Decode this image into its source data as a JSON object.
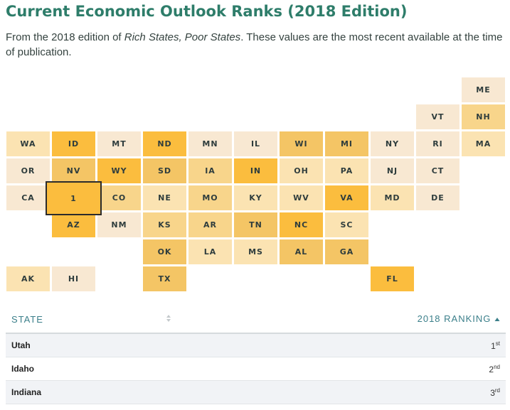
{
  "header": {
    "title": "Current Economic Outlook Ranks (2018 Edition)",
    "subtitle_pre": "From the 2018 edition of ",
    "subtitle_em": "Rich States, Poor States",
    "subtitle_post": ". These values are the most recent available at the time of publication."
  },
  "colors": {
    "title": "#2e7d6a",
    "rank_top": "#fbbd3e",
    "rank_high": "#f4c565",
    "rank_mid": "#f8d58b",
    "rank_midlow": "#fbe3b2",
    "rank_low": "#f8e8d2",
    "header_text": "#3b7f8a"
  },
  "chart_data": {
    "type": "tile-map",
    "selected": {
      "state": "UT",
      "label": "1"
    },
    "tiles": [
      {
        "state": "ME",
        "row": 0,
        "col": 10,
        "label": "ME",
        "shade": "low"
      },
      {
        "state": "VT",
        "row": 1,
        "col": 9,
        "label": "VT",
        "shade": "low"
      },
      {
        "state": "NH",
        "row": 1,
        "col": 10,
        "label": "NH",
        "shade": "mid"
      },
      {
        "state": "WA",
        "row": 2,
        "col": 0,
        "label": "WA",
        "shade": "midlow"
      },
      {
        "state": "ID",
        "row": 2,
        "col": 1,
        "label": "ID",
        "shade": "top"
      },
      {
        "state": "MT",
        "row": 2,
        "col": 2,
        "label": "MT",
        "shade": "low"
      },
      {
        "state": "ND",
        "row": 2,
        "col": 3,
        "label": "ND",
        "shade": "top"
      },
      {
        "state": "MN",
        "row": 2,
        "col": 4,
        "label": "MN",
        "shade": "low"
      },
      {
        "state": "IL",
        "row": 2,
        "col": 5,
        "label": "IL",
        "shade": "low"
      },
      {
        "state": "WI",
        "row": 2,
        "col": 6,
        "label": "WI",
        "shade": "high"
      },
      {
        "state": "MI",
        "row": 2,
        "col": 7,
        "label": "MI",
        "shade": "high"
      },
      {
        "state": "NY",
        "row": 2,
        "col": 8,
        "label": "NY",
        "shade": "low"
      },
      {
        "state": "RI",
        "row": 2,
        "col": 9,
        "label": "RI",
        "shade": "low"
      },
      {
        "state": "MA",
        "row": 2,
        "col": 10,
        "label": "MA",
        "shade": "midlow"
      },
      {
        "state": "OR",
        "row": 3,
        "col": 0,
        "label": "OR",
        "shade": "low"
      },
      {
        "state": "NV",
        "row": 3,
        "col": 1,
        "label": "NV",
        "shade": "high"
      },
      {
        "state": "WY",
        "row": 3,
        "col": 2,
        "label": "WY",
        "shade": "top"
      },
      {
        "state": "SD",
        "row": 3,
        "col": 3,
        "label": "SD",
        "shade": "high"
      },
      {
        "state": "IA",
        "row": 3,
        "col": 4,
        "label": "IA",
        "shade": "mid"
      },
      {
        "state": "IN",
        "row": 3,
        "col": 5,
        "label": "IN",
        "shade": "top"
      },
      {
        "state": "OH",
        "row": 3,
        "col": 6,
        "label": "OH",
        "shade": "midlow"
      },
      {
        "state": "PA",
        "row": 3,
        "col": 7,
        "label": "PA",
        "shade": "midlow"
      },
      {
        "state": "NJ",
        "row": 3,
        "col": 8,
        "label": "NJ",
        "shade": "low"
      },
      {
        "state": "CT",
        "row": 3,
        "col": 9,
        "label": "CT",
        "shade": "low"
      },
      {
        "state": "CA",
        "row": 4,
        "col": 0,
        "label": "CA",
        "shade": "low"
      },
      {
        "state": "UT",
        "row": 4,
        "col": 1,
        "label": "1",
        "shade": "top"
      },
      {
        "state": "CO",
        "row": 4,
        "col": 2,
        "label": "CO",
        "shade": "mid"
      },
      {
        "state": "NE",
        "row": 4,
        "col": 3,
        "label": "NE",
        "shade": "midlow"
      },
      {
        "state": "MO",
        "row": 4,
        "col": 4,
        "label": "MO",
        "shade": "mid"
      },
      {
        "state": "KY",
        "row": 4,
        "col": 5,
        "label": "KY",
        "shade": "midlow"
      },
      {
        "state": "WV",
        "row": 4,
        "col": 6,
        "label": "WV",
        "shade": "midlow"
      },
      {
        "state": "VA",
        "row": 4,
        "col": 7,
        "label": "VA",
        "shade": "top"
      },
      {
        "state": "MD",
        "row": 4,
        "col": 8,
        "label": "MD",
        "shade": "midlow"
      },
      {
        "state": "DE",
        "row": 4,
        "col": 9,
        "label": "DE",
        "shade": "low"
      },
      {
        "state": "AZ",
        "row": 5,
        "col": 1,
        "label": "AZ",
        "shade": "top"
      },
      {
        "state": "NM",
        "row": 5,
        "col": 2,
        "label": "NM",
        "shade": "low"
      },
      {
        "state": "KS",
        "row": 5,
        "col": 3,
        "label": "KS",
        "shade": "mid"
      },
      {
        "state": "AR",
        "row": 5,
        "col": 4,
        "label": "AR",
        "shade": "mid"
      },
      {
        "state": "TN",
        "row": 5,
        "col": 5,
        "label": "TN",
        "shade": "high"
      },
      {
        "state": "NC",
        "row": 5,
        "col": 6,
        "label": "NC",
        "shade": "top"
      },
      {
        "state": "SC",
        "row": 5,
        "col": 7,
        "label": "SC",
        "shade": "midlow"
      },
      {
        "state": "OK",
        "row": 6,
        "col": 3,
        "label": "OK",
        "shade": "high"
      },
      {
        "state": "LA",
        "row": 6,
        "col": 4,
        "label": "LA",
        "shade": "midlow"
      },
      {
        "state": "MS",
        "row": 6,
        "col": 5,
        "label": "MS",
        "shade": "midlow"
      },
      {
        "state": "AL",
        "row": 6,
        "col": 6,
        "label": "AL",
        "shade": "high"
      },
      {
        "state": "GA",
        "row": 6,
        "col": 7,
        "label": "GA",
        "shade": "high"
      },
      {
        "state": "AK",
        "row": 7,
        "col": 0,
        "label": "AK",
        "shade": "midlow"
      },
      {
        "state": "HI",
        "row": 7,
        "col": 1,
        "label": "HI",
        "shade": "low"
      },
      {
        "state": "TX",
        "row": 7,
        "col": 3,
        "label": "TX",
        "shade": "high"
      },
      {
        "state": "FL",
        "row": 7,
        "col": 8,
        "label": "FL",
        "shade": "top"
      }
    ]
  },
  "table": {
    "col_state": "STATE",
    "col_rank": "2018 RANKING",
    "rows": [
      {
        "state": "Utah",
        "rank": "1",
        "suffix": "st"
      },
      {
        "state": "Idaho",
        "rank": "2",
        "suffix": "nd"
      },
      {
        "state": "Indiana",
        "rank": "3",
        "suffix": "rd"
      }
    ]
  }
}
